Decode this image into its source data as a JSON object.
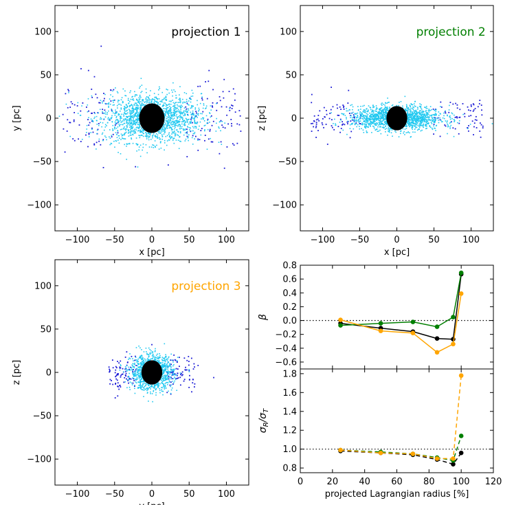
{
  "chart_data": [
    {
      "type": "scatter",
      "title": "projection 1",
      "title_color": "#000000",
      "xlabel": "x [pc]",
      "ylabel": "y [pc]",
      "xlim": [
        -130,
        130
      ],
      "ylim": [
        -130,
        130
      ],
      "xticks": [
        -100,
        -50,
        0,
        50,
        100
      ],
      "yticks": [
        -100,
        -50,
        0,
        50,
        100
      ],
      "tick_labels_x": [
        "−100",
        "−50",
        "0",
        "50",
        "100"
      ],
      "tick_labels_y": [
        "−100",
        "−50",
        "0",
        "50",
        "100"
      ],
      "core": {
        "x": 0,
        "y": 0,
        "radius": 17,
        "color": "#000000"
      },
      "halo": {
        "color": "#1ec8f0",
        "sx": 33,
        "sy": 14,
        "count": 1800
      },
      "outer": {
        "color": "#1a1ad6",
        "count": 170
      },
      "outliers": [
        [
          -68,
          83
        ],
        [
          -95,
          57
        ],
        [
          -85,
          55
        ],
        [
          -65,
          -57
        ],
        [
          72,
          42
        ],
        [
          -22,
          -56
        ],
        [
          22,
          -54
        ]
      ]
    },
    {
      "type": "scatter",
      "title": "projection 2",
      "title_color": "#007f00",
      "xlabel": "x [pc]",
      "ylabel": "z [pc]",
      "xlim": [
        -130,
        130
      ],
      "ylim": [
        -130,
        130
      ],
      "xticks": [
        -100,
        -50,
        0,
        50,
        100
      ],
      "yticks": [
        -100,
        -50,
        0,
        50,
        100
      ],
      "tick_labels_x": [
        "−100",
        "−50",
        "0",
        "50",
        "100"
      ],
      "tick_labels_y": [
        "−100",
        "−50",
        "0",
        "50",
        "100"
      ],
      "core": {
        "x": 0,
        "y": 0,
        "radius": 14,
        "color": "#000000"
      },
      "halo": {
        "color": "#1ec8f0",
        "sx": 30,
        "sy": 7,
        "count": 1600
      },
      "outer": {
        "color": "#1a1ad6",
        "count": 150
      },
      "outliers": [
        [
          -65,
          32
        ],
        [
          -115,
          18
        ],
        [
          114,
          15
        ],
        [
          113,
          -22
        ]
      ]
    },
    {
      "type": "scatter",
      "title": "projection 3",
      "title_color": "#ffa500",
      "xlabel": "y [pc]",
      "ylabel": "z [pc]",
      "xlim": [
        -130,
        130
      ],
      "ylim": [
        -130,
        130
      ],
      "xticks": [
        -100,
        -50,
        0,
        50,
        100
      ],
      "yticks": [
        -100,
        -50,
        0,
        50,
        100
      ],
      "tick_labels_x": [
        "−100",
        "−50",
        "0",
        "50",
        "100"
      ],
      "tick_labels_y": [
        "−100",
        "−50",
        "0",
        "50",
        "100"
      ],
      "core": {
        "x": 0,
        "y": 0,
        "radius": 14,
        "color": "#000000"
      },
      "halo": {
        "color": "#1ec8f0",
        "sx": 14,
        "sy": 10,
        "count": 1200
      },
      "outer": {
        "color": "#1a1ad6",
        "count": 160
      },
      "outliers": [
        [
          83,
          -6
        ],
        [
          62,
          8
        ],
        [
          0,
          32
        ]
      ]
    },
    {
      "type": "line",
      "ylabel": "β",
      "ylim": [
        -0.7,
        0.8
      ],
      "xlim": [
        0,
        120
      ],
      "yticks": [
        -0.6,
        -0.4,
        -0.2,
        0.0,
        0.2,
        0.4,
        0.6,
        0.8
      ],
      "tick_labels_y": [
        "−0.6",
        "−0.4",
        "−0.2",
        "0.0",
        "0.2",
        "0.4",
        "0.6",
        "0.8"
      ],
      "reference_line": 0.0,
      "series": [
        {
          "name": "projection 1",
          "color": "#000000",
          "dashed": false,
          "x": [
            25,
            50,
            70,
            85,
            95,
            100
          ],
          "y": [
            -0.04,
            -0.11,
            -0.16,
            -0.26,
            -0.27,
            0.67
          ]
        },
        {
          "name": "projection 2",
          "color": "#007f00",
          "dashed": false,
          "x": [
            25,
            50,
            70,
            85,
            95,
            100
          ],
          "y": [
            -0.07,
            -0.04,
            -0.02,
            -0.09,
            0.05,
            0.69
          ]
        },
        {
          "name": "projection 3",
          "color": "#ffa500",
          "dashed": false,
          "x": [
            25,
            50,
            70,
            85,
            95,
            100
          ],
          "y": [
            0.01,
            -0.15,
            -0.18,
            -0.46,
            -0.34,
            0.39
          ]
        }
      ]
    },
    {
      "type": "line",
      "xlabel": "projected Lagrangian radius [%]",
      "ylabel": "σR/σT",
      "xlim": [
        0,
        120
      ],
      "ylim": [
        0.75,
        1.85
      ],
      "xticks": [
        0,
        20,
        40,
        60,
        80,
        100,
        120
      ],
      "yticks": [
        0.8,
        1.0,
        1.2,
        1.4,
        1.6,
        1.8
      ],
      "tick_labels_x": [
        "0",
        "20",
        "40",
        "60",
        "80",
        "100",
        "120"
      ],
      "tick_labels_y": [
        "0.8",
        "1.0",
        "1.2",
        "1.4",
        "1.6",
        "1.8"
      ],
      "reference_line": 1.0,
      "series": [
        {
          "name": "projection 1",
          "color": "#000000",
          "dashed": true,
          "x": [
            25,
            50,
            70,
            85,
            95,
            100
          ],
          "y": [
            0.98,
            0.96,
            0.94,
            0.89,
            0.84,
            0.96
          ]
        },
        {
          "name": "projection 2",
          "color": "#007f00",
          "dashed": true,
          "x": [
            25,
            50,
            70,
            85,
            95,
            100
          ],
          "y": [
            0.99,
            0.97,
            0.95,
            0.91,
            0.88,
            1.14
          ]
        },
        {
          "name": "projection 3",
          "color": "#ffa500",
          "dashed": true,
          "x": [
            25,
            50,
            70,
            85,
            95,
            100
          ],
          "y": [
            0.99,
            0.96,
            0.95,
            0.9,
            0.9,
            1.78
          ]
        }
      ]
    }
  ]
}
